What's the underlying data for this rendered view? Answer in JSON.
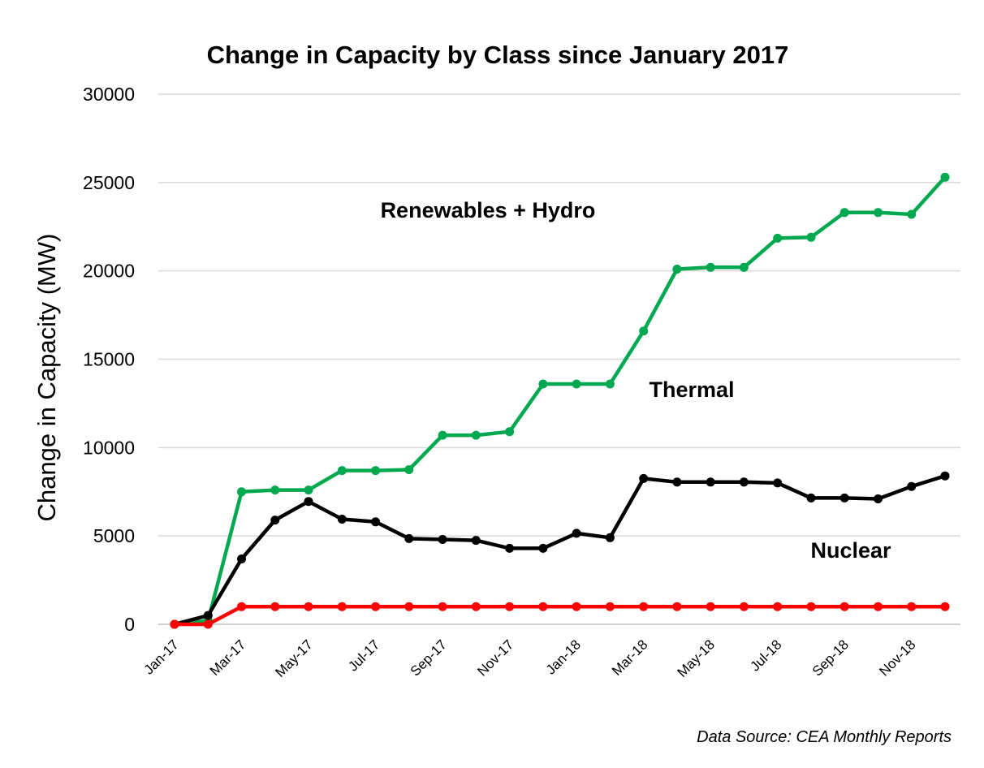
{
  "chart_data": {
    "type": "line",
    "title": "Change in Capacity by Class since January 2017",
    "xlabel": "",
    "ylabel": "Change in Capacity (MW)",
    "ylim": [
      0,
      30000
    ],
    "yticks": [
      0,
      5000,
      10000,
      15000,
      20000,
      25000,
      30000
    ],
    "grid": "horizontal",
    "x": [
      "Jan-17",
      "Feb-17",
      "Mar-17",
      "Apr-17",
      "May-17",
      "Jun-17",
      "Jul-17",
      "Aug-17",
      "Sep-17",
      "Oct-17",
      "Nov-17",
      "Dec-17",
      "Jan-18",
      "Feb-18",
      "Mar-18",
      "Apr-18",
      "May-18",
      "Jun-18",
      "Jul-18",
      "Aug-18",
      "Sep-18",
      "Oct-18",
      "Nov-18",
      "Dec-18"
    ],
    "x_tick_labels": [
      "Jan-17",
      "Mar-17",
      "May-17",
      "Jul-17",
      "Sep-17",
      "Nov-17",
      "Jan-18",
      "Mar-18",
      "May-18",
      "Jul-18",
      "Sep-18",
      "Nov-18"
    ],
    "series": [
      {
        "name": "Renewables + Hydro",
        "color": "#00a84f",
        "values": [
          0,
          200,
          7500,
          7600,
          7600,
          8700,
          8700,
          8750,
          10700,
          10700,
          10900,
          13600,
          13600,
          13600,
          16600,
          20100,
          20200,
          20200,
          21850,
          21900,
          23300,
          23300,
          23200,
          25300
        ]
      },
      {
        "name": "Thermal",
        "color": "#000000",
        "values": [
          0,
          500,
          3700,
          5900,
          6950,
          5950,
          5800,
          4850,
          4800,
          4750,
          4300,
          4300,
          5150,
          4900,
          8250,
          8050,
          8050,
          8050,
          8000,
          7150,
          7150,
          7100,
          7800,
          8400
        ]
      },
      {
        "name": "Nuclear",
        "color": "#ff0000",
        "values": [
          0,
          0,
          1000,
          1000,
          1000,
          1000,
          1000,
          1000,
          1000,
          1000,
          1000,
          1000,
          1000,
          1000,
          1000,
          1000,
          1000,
          1000,
          1000,
          1000,
          1000,
          1000,
          1000,
          1000
        ]
      }
    ],
    "gridline_color": "#d9d9d9",
    "axis_color": "#bfbfbf",
    "source_note": "Data Source: CEA Monthly Reports"
  }
}
